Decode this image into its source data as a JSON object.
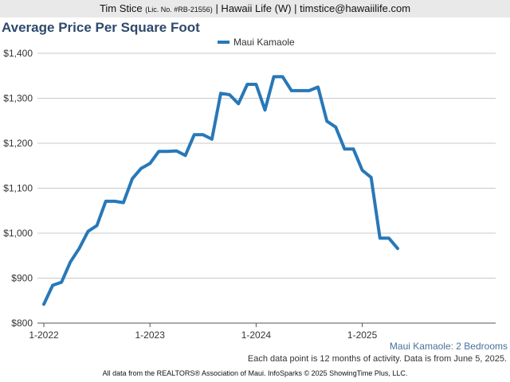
{
  "header": {
    "name": "Tim Stice",
    "license": "(Lic. No. #RB-21556)",
    "contact": "| Hawaii Life (W) | timstice@hawaiilife.com"
  },
  "chart_data": {
    "type": "line",
    "title": "Average Price Per Square Foot",
    "subtitle": "Maui Kamaole: 2 Bedrooms",
    "note": "Each data point is 12 months of activity. Data is from June 5, 2025.",
    "legend_position": "top-center",
    "grid": true,
    "series": [
      {
        "name": "Maui Kamaole",
        "color": "#2878b8",
        "x": [
          "2022-01",
          "2022-02",
          "2022-03",
          "2022-04",
          "2022-05",
          "2022-06",
          "2022-07",
          "2022-08",
          "2022-09",
          "2022-10",
          "2022-11",
          "2022-12",
          "2023-01",
          "2023-02",
          "2023-03",
          "2023-04",
          "2023-05",
          "2023-06",
          "2023-07",
          "2023-08",
          "2023-09",
          "2023-10",
          "2023-11",
          "2023-12",
          "2024-01",
          "2024-02",
          "2024-03",
          "2024-04",
          "2024-05",
          "2024-06",
          "2024-07",
          "2024-08",
          "2024-09",
          "2024-10",
          "2024-11",
          "2024-12",
          "2025-01",
          "2025-02",
          "2025-03",
          "2025-04",
          "2025-05"
        ],
        "values": [
          842,
          884,
          891,
          936,
          966,
          1004,
          1017,
          1071,
          1071,
          1068,
          1121,
          1144,
          1155,
          1182,
          1182,
          1183,
          1173,
          1219,
          1219,
          1209,
          1311,
          1308,
          1288,
          1331,
          1331,
          1274,
          1348,
          1348,
          1317,
          1317,
          1317,
          1325,
          1249,
          1236,
          1187,
          1187,
          1140,
          1124,
          989,
          989,
          966
        ]
      }
    ],
    "y_ticks": [
      "$800",
      "$900",
      "$1,000",
      "$1,100",
      "$1,200",
      "$1,300",
      "$1,400"
    ],
    "ylim": [
      800,
      1400
    ],
    "x_ticks": [
      {
        "label": "1-2022",
        "x": "2022-01"
      },
      {
        "label": "1-2023",
        "x": "2023-01"
      },
      {
        "label": "1-2024",
        "x": "2024-01"
      },
      {
        "label": "1-2025",
        "x": "2025-01"
      }
    ],
    "xlabel": "",
    "ylabel": ""
  },
  "footer": "All data from the REALTORS® Association of Maui. InfoSparks © 2025 ShowingTime Plus, LLC."
}
